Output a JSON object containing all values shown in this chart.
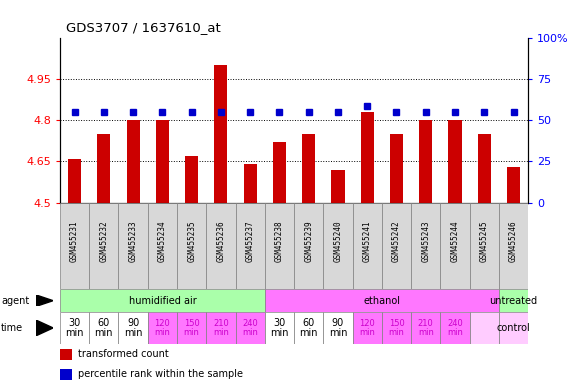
{
  "title": "GDS3707 / 1637610_at",
  "samples": [
    "GSM455231",
    "GSM455232",
    "GSM455233",
    "GSM455234",
    "GSM455235",
    "GSM455236",
    "GSM455237",
    "GSM455238",
    "GSM455239",
    "GSM455240",
    "GSM455241",
    "GSM455242",
    "GSM455243",
    "GSM455244",
    "GSM455245",
    "GSM455246"
  ],
  "bar_values": [
    4.66,
    4.75,
    4.8,
    4.8,
    4.67,
    5.0,
    4.64,
    4.72,
    4.75,
    4.62,
    4.83,
    4.75,
    4.8,
    4.8,
    4.75,
    4.63
  ],
  "percentile_y_left": [
    4.83,
    4.83,
    4.83,
    4.83,
    4.83,
    4.83,
    4.83,
    4.83,
    4.83,
    4.83,
    4.85,
    4.83,
    4.83,
    4.83,
    4.83,
    4.83
  ],
  "bar_color": "#cc0000",
  "dot_color": "#0000cc",
  "ymin": 4.5,
  "ymax": 5.1,
  "yticks": [
    4.5,
    4.65,
    4.8,
    4.95
  ],
  "ytick_labels": [
    "4.5",
    "4.65",
    "4.8",
    "4.95"
  ],
  "y2ticks_pct": [
    0,
    25,
    50,
    75,
    100
  ],
  "y2tick_labels": [
    "0",
    "25",
    "50",
    "75",
    "100%"
  ],
  "agent_groups": [
    {
      "label": "humidified air",
      "start": 0,
      "end": 7,
      "color": "#aaffaa"
    },
    {
      "label": "ethanol",
      "start": 7,
      "end": 15,
      "color": "#ff77ff"
    },
    {
      "label": "untreated",
      "start": 15,
      "end": 16,
      "color": "#aaffaa"
    }
  ],
  "time_entries": [
    {
      "text": "30\nmin",
      "col": 0,
      "size": 7,
      "color": "#000000",
      "bg": "#ffffff"
    },
    {
      "text": "60\nmin",
      "col": 1,
      "size": 7,
      "color": "#000000",
      "bg": "#ffffff"
    },
    {
      "text": "90\nmin",
      "col": 2,
      "size": 7,
      "color": "#000000",
      "bg": "#ffffff"
    },
    {
      "text": "120\nmin",
      "col": 3,
      "size": 6,
      "color": "#cc00cc",
      "bg": "#ff77ff"
    },
    {
      "text": "150\nmin",
      "col": 4,
      "size": 6,
      "color": "#cc00cc",
      "bg": "#ff77ff"
    },
    {
      "text": "210\nmin",
      "col": 5,
      "size": 6,
      "color": "#cc00cc",
      "bg": "#ff77ff"
    },
    {
      "text": "240\nmin",
      "col": 6,
      "size": 6,
      "color": "#cc00cc",
      "bg": "#ff77ff"
    },
    {
      "text": "30\nmin",
      "col": 7,
      "size": 7,
      "color": "#000000",
      "bg": "#ffffff"
    },
    {
      "text": "60\nmin",
      "col": 8,
      "size": 7,
      "color": "#000000",
      "bg": "#ffffff"
    },
    {
      "text": "90\nmin",
      "col": 9,
      "size": 7,
      "color": "#000000",
      "bg": "#ffffff"
    },
    {
      "text": "120\nmin",
      "col": 10,
      "size": 6,
      "color": "#cc00cc",
      "bg": "#ff77ff"
    },
    {
      "text": "150\nmin",
      "col": 11,
      "size": 6,
      "color": "#cc00cc",
      "bg": "#ff77ff"
    },
    {
      "text": "210\nmin",
      "col": 12,
      "size": 6,
      "color": "#cc00cc",
      "bg": "#ff77ff"
    },
    {
      "text": "240\nmin",
      "col": 13,
      "size": 6,
      "color": "#cc00cc",
      "bg": "#ff77ff"
    },
    {
      "text": "control",
      "col": 15,
      "size": 7,
      "color": "#000000",
      "bg": "#ffccff"
    }
  ],
  "legend_items": [
    {
      "color": "#cc0000",
      "label": "transformed count"
    },
    {
      "color": "#0000cc",
      "label": "percentile rank within the sample"
    }
  ],
  "fig_width": 5.71,
  "fig_height": 3.84,
  "dpi": 100
}
